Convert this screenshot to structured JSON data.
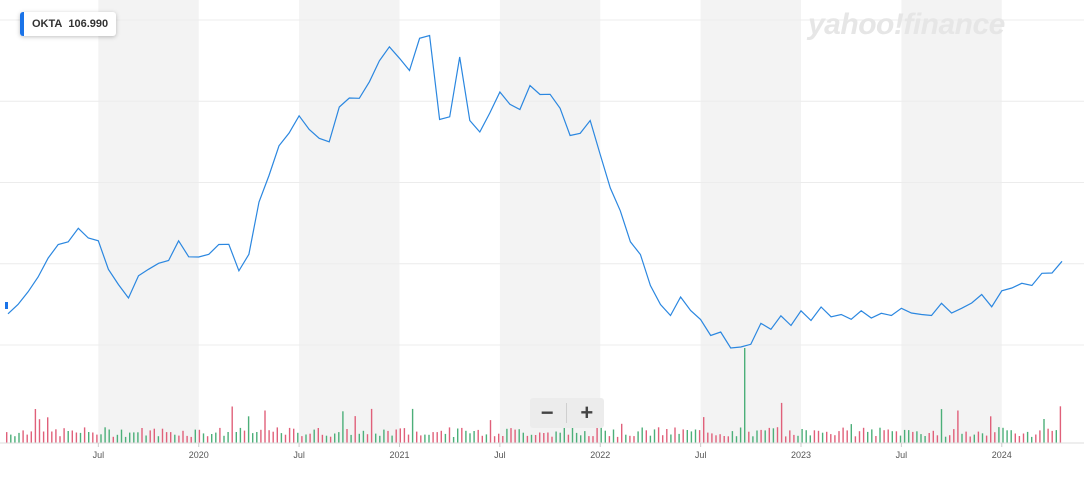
{
  "badge": {
    "symbol": "OKTA",
    "price": "106.990"
  },
  "brand": {
    "text": "yahoo!finance"
  },
  "zoom": {
    "minus": "−",
    "plus": "+"
  },
  "colors": {
    "line": "#2b87e0",
    "vol_up": "#4caf79",
    "vol_down": "#e0607a",
    "shade": "#f3f3f3"
  },
  "chart_data": {
    "type": "line",
    "title": "",
    "xlabel": "",
    "ylabel": "",
    "x_ticks": [
      "Jul",
      "2020",
      "Jul",
      "2021",
      "Jul",
      "2022",
      "Jul",
      "2023",
      "Jul",
      "2024"
    ],
    "x_range": [
      2019.05,
      2024.3
    ],
    "y_range": [
      20,
      300
    ],
    "grid": true,
    "series": [
      {
        "points": [
          [
            2019.05,
            65
          ],
          [
            2019.1,
            70
          ],
          [
            2019.15,
            85
          ],
          [
            2019.2,
            92
          ],
          [
            2019.25,
            112
          ],
          [
            2019.3,
            118
          ],
          [
            2019.35,
            125
          ],
          [
            2019.4,
            131
          ],
          [
            2019.45,
            128
          ],
          [
            2019.5,
            121
          ],
          [
            2019.55,
            103
          ],
          [
            2019.6,
            86
          ],
          [
            2019.65,
            80
          ],
          [
            2019.7,
            93
          ],
          [
            2019.75,
            103
          ],
          [
            2019.8,
            103
          ],
          [
            2019.85,
            110
          ],
          [
            2019.9,
            121
          ],
          [
            2019.95,
            113
          ],
          [
            2020.0,
            108
          ],
          [
            2020.05,
            115
          ],
          [
            2020.1,
            118
          ],
          [
            2020.15,
            123
          ],
          [
            2020.2,
            97
          ],
          [
            2020.25,
            115
          ],
          [
            2020.3,
            152
          ],
          [
            2020.35,
            178
          ],
          [
            2020.4,
            197
          ],
          [
            2020.45,
            212
          ],
          [
            2020.5,
            221
          ],
          [
            2020.55,
            215
          ],
          [
            2020.6,
            203
          ],
          [
            2020.65,
            205
          ],
          [
            2020.7,
            228
          ],
          [
            2020.75,
            240
          ],
          [
            2020.8,
            235
          ],
          [
            2020.85,
            253
          ],
          [
            2020.9,
            265
          ],
          [
            2020.95,
            281
          ],
          [
            2021.0,
            267
          ],
          [
            2021.05,
            262
          ],
          [
            2021.1,
            283
          ],
          [
            2021.15,
            290
          ],
          [
            2021.2,
            218
          ],
          [
            2021.25,
            225
          ],
          [
            2021.3,
            268
          ],
          [
            2021.35,
            222
          ],
          [
            2021.4,
            208
          ],
          [
            2021.45,
            228
          ],
          [
            2021.5,
            240
          ],
          [
            2021.55,
            235
          ],
          [
            2021.6,
            226
          ],
          [
            2021.65,
            250
          ],
          [
            2021.7,
            238
          ],
          [
            2021.75,
            243
          ],
          [
            2021.8,
            227
          ],
          [
            2021.85,
            210
          ],
          [
            2021.9,
            207
          ],
          [
            2021.95,
            222
          ],
          [
            2022.0,
            190
          ],
          [
            2022.05,
            168
          ],
          [
            2022.1,
            145
          ],
          [
            2022.15,
            125
          ],
          [
            2022.2,
            110
          ],
          [
            2022.25,
            90
          ],
          [
            2022.3,
            70
          ],
          [
            2022.35,
            66
          ],
          [
            2022.4,
            76
          ],
          [
            2022.45,
            70
          ],
          [
            2022.5,
            58
          ],
          [
            2022.55,
            50
          ],
          [
            2022.6,
            48
          ],
          [
            2022.65,
            40
          ],
          [
            2022.7,
            36
          ],
          [
            2022.75,
            43
          ],
          [
            2022.8,
            55
          ],
          [
            2022.85,
            55
          ],
          [
            2022.9,
            61
          ],
          [
            2022.95,
            58
          ],
          [
            2023.0,
            65
          ],
          [
            2023.05,
            62
          ],
          [
            2023.1,
            68
          ],
          [
            2023.15,
            65
          ],
          [
            2023.2,
            62
          ],
          [
            2023.25,
            63
          ],
          [
            2023.3,
            65
          ],
          [
            2023.35,
            64
          ],
          [
            2023.4,
            63
          ],
          [
            2023.45,
            66
          ],
          [
            2023.5,
            67
          ],
          [
            2023.55,
            68
          ],
          [
            2023.6,
            62
          ],
          [
            2023.65,
            66
          ],
          [
            2023.7,
            71
          ],
          [
            2023.75,
            68
          ],
          [
            2023.8,
            67
          ],
          [
            2023.85,
            76
          ],
          [
            2023.9,
            78
          ],
          [
            2023.95,
            73
          ],
          [
            2024.0,
            81
          ],
          [
            2024.05,
            88
          ],
          [
            2024.1,
            87
          ],
          [
            2024.15,
            90
          ],
          [
            2024.2,
            95
          ],
          [
            2024.25,
            100
          ],
          [
            2024.3,
            107
          ]
        ]
      }
    ]
  }
}
